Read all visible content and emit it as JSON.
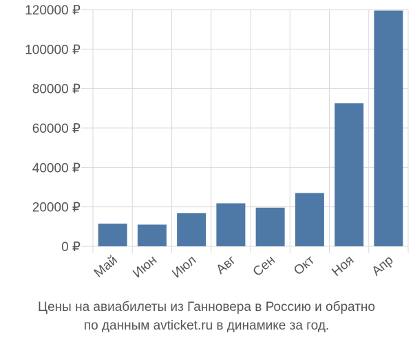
{
  "chart_data": {
    "type": "bar",
    "categories": [
      "Май",
      "Июн",
      "Июл",
      "Авг",
      "Сен",
      "Окт",
      "Ноя",
      "Апр"
    ],
    "values": [
      11500,
      11000,
      16800,
      21800,
      19600,
      27000,
      72500,
      119500
    ],
    "y_ticks": [
      0,
      20000,
      40000,
      60000,
      80000,
      100000,
      120000
    ],
    "y_tick_labels": [
      "0 ₽",
      "20000 ₽",
      "40000 ₽",
      "60000 ₽",
      "80000 ₽",
      "100000 ₽",
      "120000 ₽"
    ],
    "ylim": [
      0,
      120000
    ],
    "grid": true,
    "colors": {
      "bar": "#4e79a7",
      "grid": "#d9d9d9",
      "axis_text": "#555555"
    },
    "caption_line1": "Цены на авиабилеты из Ганновера в Россию и обратно",
    "caption_line2": "по данным avticket.ru в динамике за год."
  }
}
